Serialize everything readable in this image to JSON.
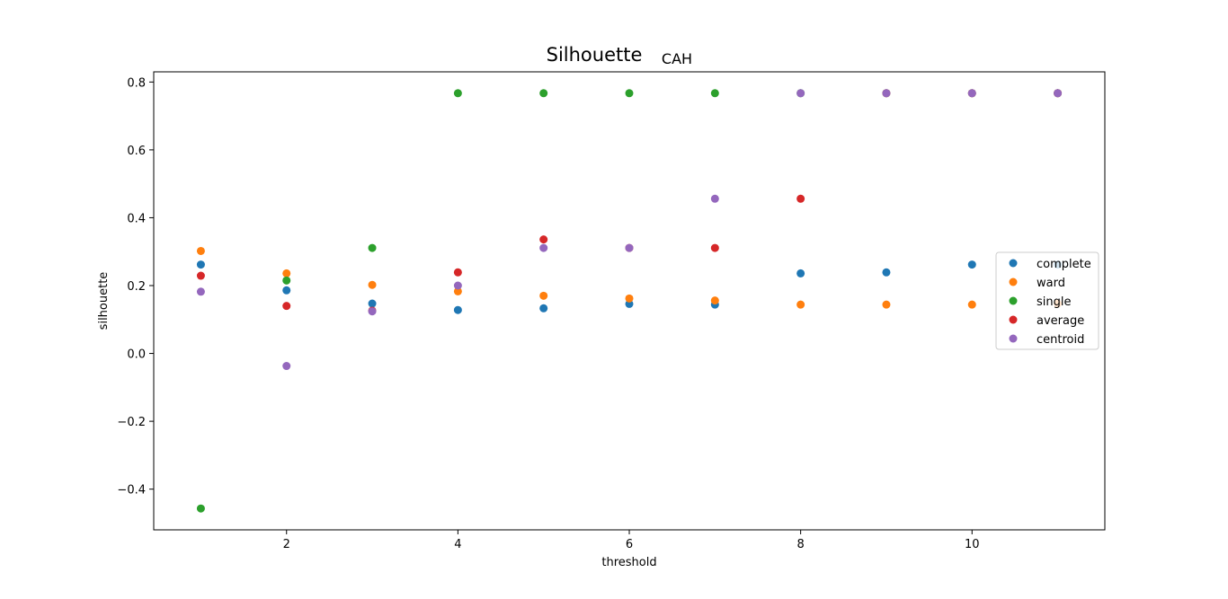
{
  "chart_data": {
    "type": "scatter",
    "title": "Silhouette",
    "subtitle": "CAH",
    "xlabel": "threshold",
    "ylabel": "silhouette",
    "xlim": [
      0.45,
      11.55
    ],
    "ylim": [
      -0.52,
      0.83
    ],
    "xticks": [
      2,
      4,
      6,
      8,
      10
    ],
    "yticks": [
      -0.4,
      -0.2,
      0.0,
      0.2,
      0.4,
      0.6,
      0.8
    ],
    "xtick_labels": [
      "2",
      "4",
      "6",
      "8",
      "10"
    ],
    "ytick_labels": [
      "−0.4",
      "−0.2",
      "0.0",
      "0.2",
      "0.4",
      "0.6",
      "0.8"
    ],
    "grid": false,
    "legend_position": "center-right",
    "x": [
      1,
      2,
      3,
      4,
      5,
      6,
      7,
      8,
      9,
      10,
      11
    ],
    "series": [
      {
        "name": "complete",
        "color": "#1f77b4",
        "values": [
          0.262,
          0.186,
          0.147,
          0.128,
          0.133,
          0.146,
          0.144,
          0.236,
          0.239,
          0.262,
          0.262
        ]
      },
      {
        "name": "ward",
        "color": "#ff7f0e",
        "values": [
          0.302,
          0.236,
          0.202,
          0.183,
          0.17,
          0.162,
          0.156,
          0.144,
          0.144,
          0.144,
          0.147
        ]
      },
      {
        "name": "single",
        "color": "#2ca02c",
        "values": [
          -0.457,
          0.215,
          0.311,
          0.767,
          0.767,
          0.767,
          0.767,
          0.767,
          0.767,
          0.767,
          0.767
        ]
      },
      {
        "name": "average",
        "color": "#d62728",
        "values": [
          0.229,
          0.14,
          0.126,
          0.239,
          0.336,
          0.311,
          0.311,
          0.456,
          0.767,
          0.767,
          0.767
        ]
      },
      {
        "name": "centroid",
        "color": "#9467bd",
        "values": [
          0.182,
          -0.037,
          0.124,
          0.2,
          0.311,
          0.311,
          0.456,
          0.767,
          0.767,
          0.767,
          0.767
        ]
      }
    ]
  }
}
